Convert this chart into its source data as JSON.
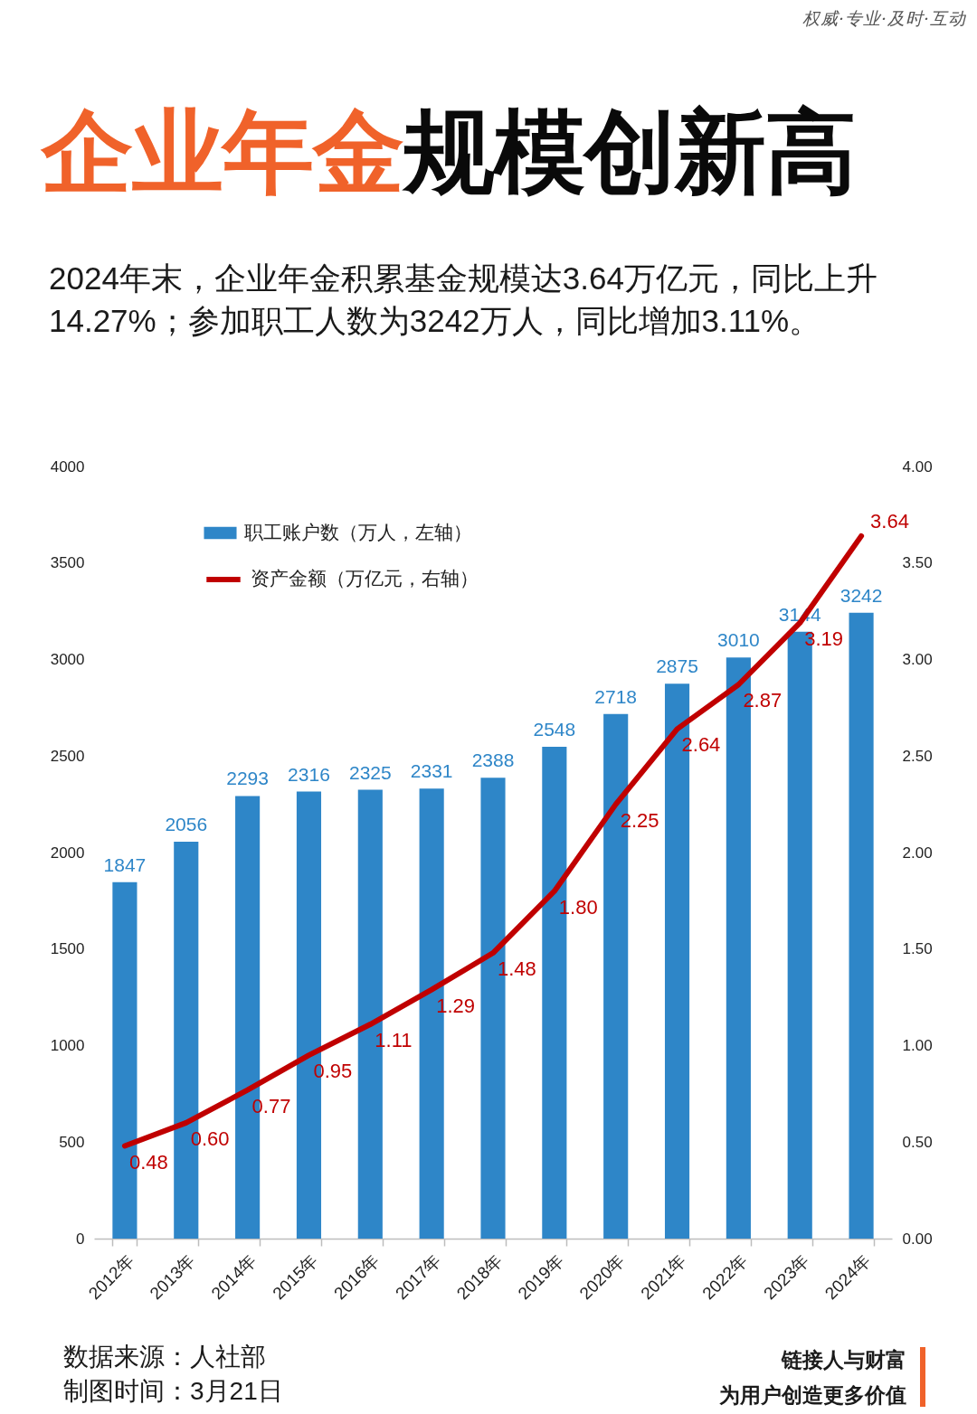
{
  "chart_data": {
    "type": "bar",
    "title": "企业年金规模创新高",
    "subtitle": "2024年末，企业年金积累基金规模达3.64万亿元，同比上升14.27%；参加职工人数为3242万人，同比增加3.11%。",
    "categories": [
      "2012年",
      "2013年",
      "2014年",
      "2015年",
      "2016年",
      "2017年",
      "2018年",
      "2019年",
      "2020年",
      "2021年",
      "2022年",
      "2023年",
      "2024年"
    ],
    "series": [
      {
        "name": "职工账户数（万人，左轴）",
        "color": "#2e86c8",
        "values": [
          1847,
          2056,
          2293,
          2316,
          2325,
          2331,
          2388,
          2548,
          2718,
          2875,
          3010,
          3144,
          3242
        ],
        "value_labels": [
          "1847",
          "2056",
          "2293",
          "2316",
          "2325",
          "2331",
          "2388",
          "2548",
          "2718",
          "2875",
          "3010",
          "3144",
          "3242"
        ]
      },
      {
        "name": "资产金额（万亿元，右轴）",
        "type": "line",
        "axis": "y2",
        "color": "#c00000",
        "values": [
          0.48,
          0.6,
          0.77,
          0.95,
          1.11,
          1.29,
          1.48,
          1.8,
          2.25,
          2.64,
          2.87,
          3.19,
          3.64
        ],
        "value_labels": [
          "0.48",
          "0.60",
          "0.77",
          "0.95",
          "1.11",
          "1.29",
          "1.48",
          "1.80",
          "2.25",
          "2.64",
          "2.87",
          "3.19",
          "3.64"
        ]
      }
    ],
    "ylim": [
      0,
      4000
    ],
    "yticks": [
      0,
      500,
      1000,
      1500,
      2000,
      2500,
      3000,
      3500,
      4000
    ],
    "y2lim": [
      0,
      4
    ],
    "y2ticks": [
      {
        "value": 0,
        "label": "0.00"
      },
      {
        "value": 0.5,
        "label": "0.50"
      },
      {
        "value": 1,
        "label": "1.00"
      },
      {
        "value": 1.5,
        "label": "1.50"
      },
      {
        "value": 2,
        "label": "2.00"
      },
      {
        "value": 2.5,
        "label": "2.50"
      },
      {
        "value": 3,
        "label": "3.00"
      },
      {
        "value": 3.5,
        "label": "3.50"
      },
      {
        "value": 4,
        "label": "4.00"
      }
    ],
    "legend": "top left",
    "line_style": "solid",
    "annotations": [
      "权威·专业·及时·互动",
      "数据来源：人社部",
      "制图时间：3月21日",
      "链接人与财富",
      "为用户创造更多价值"
    ]
  }
}
